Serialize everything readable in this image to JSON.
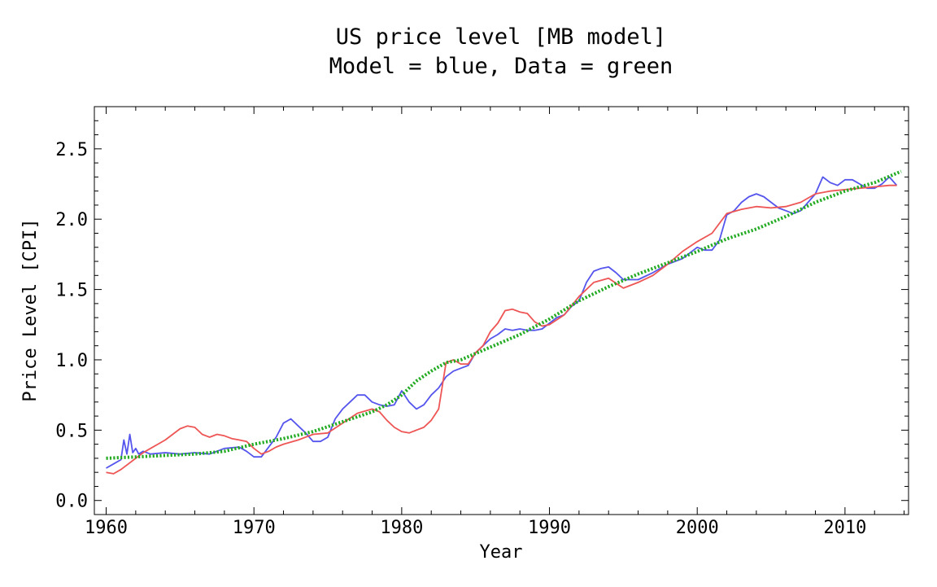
{
  "chart_data": {
    "type": "line",
    "title_lines": [
      "US price level [MB model]",
      "Model = blue, Data = green"
    ],
    "xlabel": "Year",
    "ylabel": "Price Level [CPI]",
    "xlim": [
      1959.2,
      2014.3
    ],
    "ylim": [
      -0.1,
      2.8
    ],
    "x_ticks": [
      1960,
      1970,
      1980,
      1990,
      2000,
      2010
    ],
    "x_tick_labels": [
      "1960",
      "1970",
      "1980",
      "1990",
      "2000",
      "2010"
    ],
    "y_ticks": [
      0.0,
      0.5,
      1.0,
      1.5,
      2.0,
      2.5
    ],
    "y_tick_labels": [
      "0.0",
      "0.5",
      "1.0",
      "1.5",
      "2.0",
      "2.5"
    ],
    "grid": false,
    "series": [
      {
        "color": "#5555ee",
        "style": "solid",
        "x": [
          1960.0,
          1960.5,
          1961.0,
          1961.2,
          1961.4,
          1961.6,
          1961.8,
          1962.0,
          1962.2,
          1962.5,
          1963.0,
          1964.0,
          1965.0,
          1966.0,
          1967.0,
          1968.0,
          1969.0,
          1969.5,
          1970.0,
          1970.5,
          1971.0,
          1971.5,
          1972.0,
          1972.5,
          1973.0,
          1973.5,
          1974.0,
          1974.5,
          1975.0,
          1975.5,
          1976.0,
          1976.5,
          1977.0,
          1977.5,
          1978.0,
          1978.5,
          1979.0,
          1979.5,
          1980.0,
          1980.5,
          1981.0,
          1981.5,
          1982.0,
          1982.5,
          1983.0,
          1983.5,
          1984.0,
          1984.5,
          1985.0,
          1985.5,
          1986.0,
          1986.5,
          1987.0,
          1987.5,
          1988.0,
          1988.5,
          1989.0,
          1989.5,
          1990.0,
          1990.5,
          1991.0,
          1991.5,
          1992.0,
          1992.5,
          1993.0,
          1993.5,
          1994.0,
          1994.5,
          1995.0,
          1996.0,
          1997.0,
          1998.0,
          1999.0,
          1999.5,
          2000.0,
          2000.5,
          2001.0,
          2001.5,
          2002.0,
          2002.5,
          2003.0,
          2003.5,
          2004.0,
          2004.5,
          2005.0,
          2005.5,
          2006.0,
          2006.5,
          2007.0,
          2007.5,
          2008.0,
          2008.5,
          2009.0,
          2009.5,
          2010.0,
          2010.5,
          2011.0,
          2011.5,
          2012.0,
          2012.5,
          2013.0,
          2013.5
        ],
        "values": [
          0.23,
          0.26,
          0.29,
          0.43,
          0.33,
          0.47,
          0.34,
          0.37,
          0.33,
          0.35,
          0.33,
          0.34,
          0.33,
          0.34,
          0.33,
          0.37,
          0.38,
          0.35,
          0.31,
          0.31,
          0.38,
          0.45,
          0.55,
          0.58,
          0.53,
          0.48,
          0.42,
          0.42,
          0.45,
          0.58,
          0.65,
          0.7,
          0.75,
          0.75,
          0.7,
          0.68,
          0.67,
          0.68,
          0.78,
          0.7,
          0.65,
          0.68,
          0.75,
          0.8,
          0.88,
          0.92,
          0.94,
          0.96,
          1.05,
          1.1,
          1.15,
          1.18,
          1.22,
          1.21,
          1.22,
          1.21,
          1.21,
          1.22,
          1.26,
          1.3,
          1.32,
          1.38,
          1.42,
          1.55,
          1.63,
          1.65,
          1.66,
          1.62,
          1.57,
          1.57,
          1.62,
          1.68,
          1.72,
          1.76,
          1.8,
          1.78,
          1.78,
          1.85,
          2.03,
          2.06,
          2.12,
          2.16,
          2.18,
          2.16,
          2.12,
          2.08,
          2.06,
          2.04,
          2.06,
          2.12,
          2.18,
          2.3,
          2.26,
          2.24,
          2.28,
          2.28,
          2.25,
          2.22,
          2.22,
          2.25,
          2.3,
          2.24
        ]
      },
      {
        "color": "#ee5555",
        "style": "solid",
        "x": [
          1960.0,
          1960.5,
          1961.0,
          1961.5,
          1962.0,
          1962.5,
          1963.0,
          1963.5,
          1964.0,
          1964.5,
          1965.0,
          1965.5,
          1966.0,
          1966.5,
          1967.0,
          1967.5,
          1968.0,
          1968.5,
          1969.0,
          1969.5,
          1970.0,
          1970.5,
          1971.0,
          1971.5,
          1972.0,
          1973.0,
          1974.0,
          1975.0,
          1976.0,
          1977.0,
          1978.0,
          1978.5,
          1979.0,
          1979.5,
          1980.0,
          1980.5,
          1981.0,
          1981.5,
          1982.0,
          1982.5,
          1983.0,
          1983.5,
          1984.0,
          1984.5,
          1985.0,
          1985.5,
          1986.0,
          1986.5,
          1987.0,
          1987.5,
          1988.0,
          1988.5,
          1989.0,
          1989.5,
          1990.0,
          1991.0,
          1992.0,
          1993.0,
          1994.0,
          1995.0,
          1996.0,
          1997.0,
          1998.0,
          1999.0,
          2000.0,
          2001.0,
          2002.0,
          2003.0,
          2004.0,
          2005.0,
          2006.0,
          2007.0,
          2008.0,
          2009.0,
          2010.0,
          2011.0,
          2012.0,
          2013.0,
          2013.5
        ],
        "values": [
          0.2,
          0.19,
          0.22,
          0.26,
          0.3,
          0.34,
          0.37,
          0.4,
          0.43,
          0.47,
          0.51,
          0.53,
          0.52,
          0.47,
          0.45,
          0.47,
          0.46,
          0.44,
          0.43,
          0.42,
          0.37,
          0.33,
          0.35,
          0.38,
          0.4,
          0.43,
          0.47,
          0.48,
          0.55,
          0.62,
          0.65,
          0.63,
          0.57,
          0.52,
          0.49,
          0.48,
          0.5,
          0.52,
          0.57,
          0.65,
          0.98,
          1.0,
          0.97,
          0.97,
          1.05,
          1.1,
          1.2,
          1.26,
          1.35,
          1.36,
          1.34,
          1.33,
          1.27,
          1.24,
          1.25,
          1.32,
          1.45,
          1.55,
          1.58,
          1.51,
          1.55,
          1.6,
          1.68,
          1.77,
          1.84,
          1.9,
          2.04,
          2.07,
          2.09,
          2.08,
          2.09,
          2.12,
          2.18,
          2.2,
          2.21,
          2.22,
          2.23,
          2.24,
          2.24
        ]
      },
      {
        "color": "#22aa22",
        "style": "dotted",
        "x": [
          1960.0,
          1962.0,
          1964.0,
          1966.0,
          1968.0,
          1970.0,
          1972.0,
          1974.0,
          1976.0,
          1978.0,
          1979.0,
          1980.0,
          1981.0,
          1982.0,
          1983.0,
          1984.0,
          1986.0,
          1988.0,
          1990.0,
          1992.0,
          1994.0,
          1996.0,
          1998.0,
          2000.0,
          2002.0,
          2004.0,
          2006.0,
          2008.0,
          2010.0,
          2012.0,
          2013.8
        ],
        "values": [
          0.3,
          0.31,
          0.32,
          0.33,
          0.35,
          0.4,
          0.44,
          0.49,
          0.56,
          0.63,
          0.68,
          0.75,
          0.85,
          0.92,
          0.98,
          1.0,
          1.09,
          1.18,
          1.29,
          1.42,
          1.52,
          1.61,
          1.69,
          1.77,
          1.86,
          1.93,
          2.02,
          2.12,
          2.2,
          2.26,
          2.34
        ]
      }
    ]
  }
}
